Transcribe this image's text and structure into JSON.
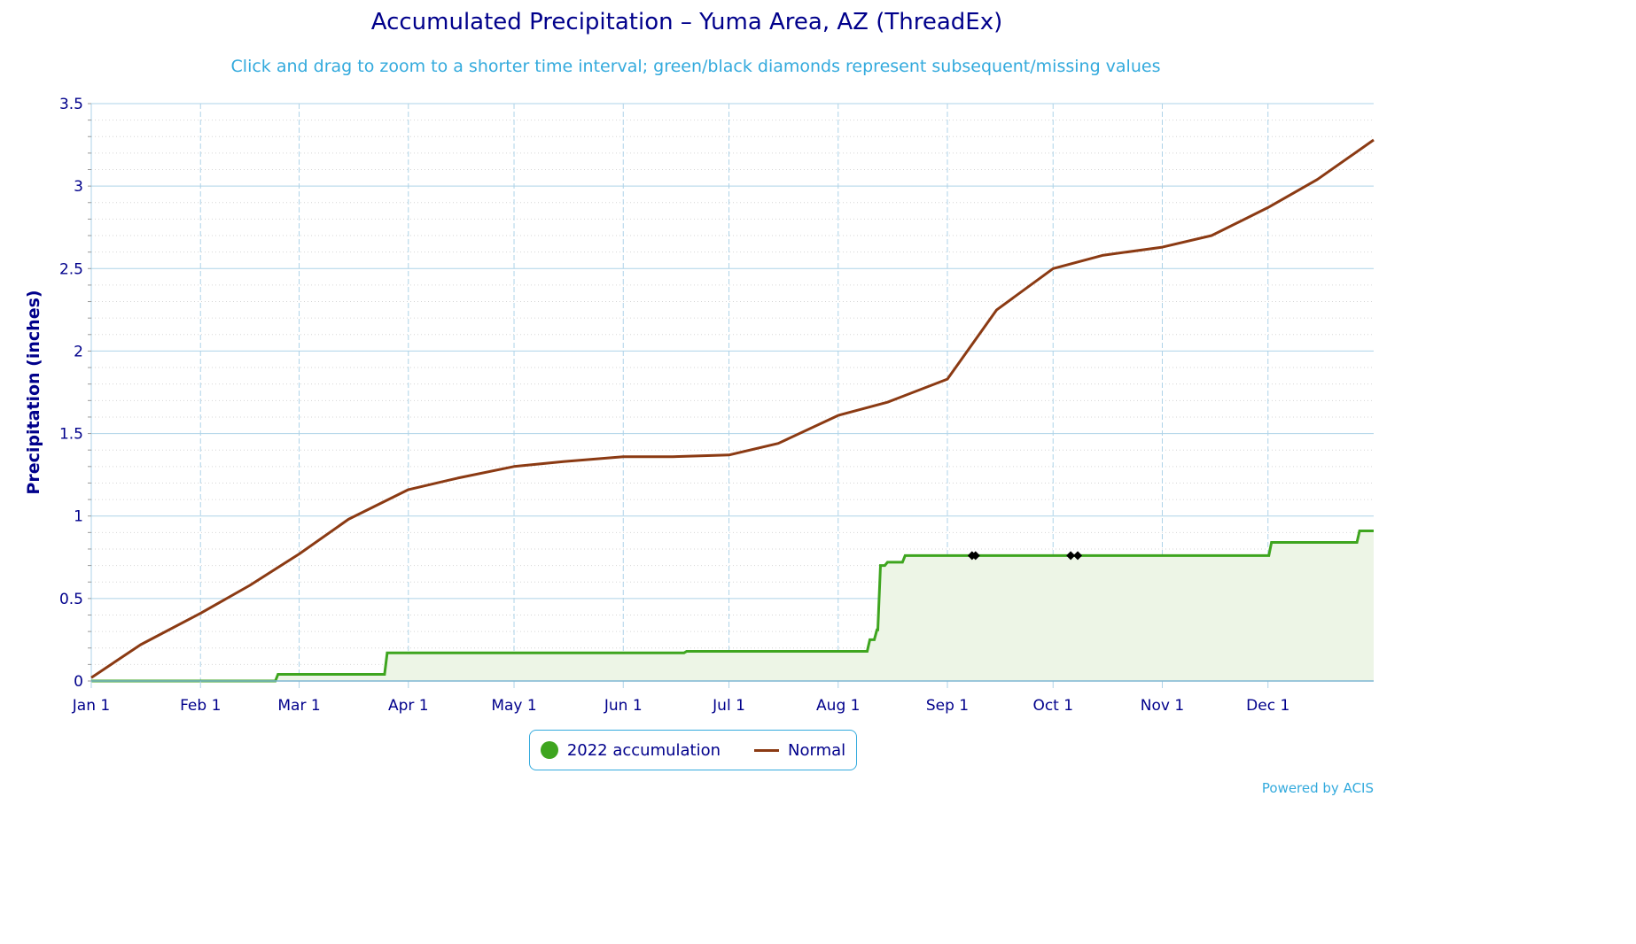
{
  "title": "Accumulated Precipitation – Yuma Area, AZ (ThreadEx)",
  "subtitle": "Click and drag to zoom to a shorter time interval; green/black diamonds represent subsequent/missing values",
  "credits": "Powered by ACIS",
  "colors": {
    "accumulation": "#3ea51f",
    "accumulation_fill": "#edf5e6",
    "normal": "#8b3a13",
    "grid": "#aed3e8",
    "axis": "#00008b",
    "missing": "#000000"
  },
  "chart_data": {
    "type": "line",
    "ylabel": "Precipitation (inches)",
    "xlabel": "",
    "ylim": [
      0,
      3.5
    ],
    "yticks": [
      "0",
      "0.5",
      "1",
      "1.5",
      "2",
      "2.5",
      "3",
      "3.5"
    ],
    "x_axis": {
      "type": "date",
      "range": [
        "2022-01-01",
        "2022-12-31"
      ],
      "tick_labels": [
        "Jan 1",
        "Feb 1",
        "Mar 1",
        "Apr 1",
        "May 1",
        "Jun 1",
        "Jul 1",
        "Aug 1",
        "Sep 1",
        "Oct 1",
        "Nov 1",
        "Dec 1"
      ],
      "tick_dates": [
        "2022-01-01",
        "2022-02-01",
        "2022-03-01",
        "2022-04-01",
        "2022-05-01",
        "2022-06-01",
        "2022-07-01",
        "2022-08-01",
        "2022-09-01",
        "2022-10-01",
        "2022-11-01",
        "2022-12-01"
      ]
    },
    "grid": true,
    "legend_position": "bottom-center",
    "series": [
      {
        "name": "2022 accumulation",
        "style": "step-area",
        "x": [
          "2022-01-01",
          "2022-02-23",
          "2022-03-26",
          "2022-06-19",
          "2022-08-10",
          "2022-08-12",
          "2022-08-13",
          "2022-08-15",
          "2022-08-20",
          "2022-09-25",
          "2022-12-02",
          "2022-12-27",
          "2022-12-31"
        ],
        "values": [
          0.0,
          0.04,
          0.17,
          0.18,
          0.25,
          0.31,
          0.7,
          0.72,
          0.76,
          0.76,
          0.84,
          0.91,
          0.91
        ]
      },
      {
        "name": "Normal",
        "style": "line",
        "x": [
          "2022-01-01",
          "2022-01-15",
          "2022-02-01",
          "2022-02-15",
          "2022-03-01",
          "2022-03-15",
          "2022-04-01",
          "2022-04-15",
          "2022-05-01",
          "2022-05-15",
          "2022-06-01",
          "2022-06-15",
          "2022-07-01",
          "2022-07-15",
          "2022-08-01",
          "2022-08-15",
          "2022-09-01",
          "2022-09-15",
          "2022-10-01",
          "2022-10-15",
          "2022-11-01",
          "2022-11-15",
          "2022-12-01",
          "2022-12-15",
          "2022-12-31"
        ],
        "values": [
          0.02,
          0.22,
          0.41,
          0.58,
          0.77,
          0.98,
          1.16,
          1.23,
          1.3,
          1.33,
          1.36,
          1.36,
          1.37,
          1.44,
          1.61,
          1.69,
          1.83,
          2.25,
          2.5,
          2.58,
          2.63,
          2.7,
          2.87,
          3.04,
          3.28
        ]
      }
    ],
    "missing_values": {
      "marker": "black diamond",
      "x": [
        "2022-09-08",
        "2022-09-09",
        "2022-10-06",
        "2022-10-08"
      ],
      "y": [
        0.76,
        0.76,
        0.76,
        0.76
      ]
    }
  }
}
